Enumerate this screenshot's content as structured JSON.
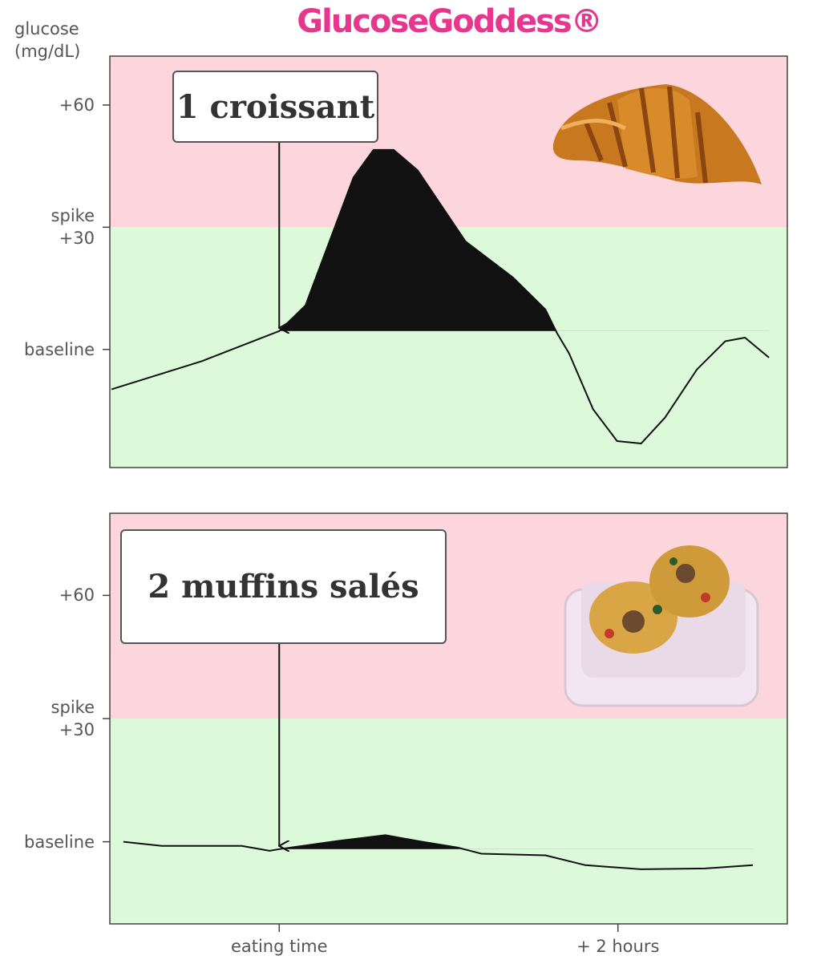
{
  "chart_data": [
    {
      "type": "line",
      "title": "GlucoseGoddess®",
      "ylabel": "glucose\n(mg/dL)",
      "annotation": "1 croissant",
      "x": [
        -59.4,
        -27.5,
        0,
        9.3,
        17.8,
        26.3,
        33.4,
        40.5,
        49,
        66,
        82.9,
        94.3,
        98.5,
        102.7,
        111.2,
        119.7,
        128.2,
        136.7,
        148,
        158,
        165,
        173.5
      ],
      "values": [
        -9.8,
        -2.9,
        4.5,
        10.8,
        26.5,
        42.2,
        49,
        49,
        44,
        26.5,
        17.6,
        9.8,
        3.9,
        -1,
        -14.7,
        -22.5,
        -23.1,
        -16.7,
        -4.9,
        2,
        2.9,
        -2
      ],
      "color": "#111111",
      "xlim": [
        -60,
        180
      ],
      "ylim": [
        -29,
        72
      ],
      "yticks": [
        {
          "value": 60,
          "label": "+60"
        },
        {
          "value": 30,
          "label": "spike\n+30"
        },
        {
          "value": 0,
          "label": "baseline"
        }
      ]
    },
    {
      "type": "line",
      "annotation": "2 muffins salés",
      "x": [
        -55.2,
        -41.6,
        -13.3,
        -3.4,
        0,
        20.7,
        37.6,
        49,
        63.1,
        71.6,
        94.3,
        108.5,
        128.2,
        150.9,
        167.8
      ],
      "values": [
        0,
        -1,
        -1,
        -2.2,
        -1.8,
        0.2,
        1.6,
        0.2,
        -1.4,
        -2.9,
        -3.3,
        -5.7,
        -6.7,
        -6.5,
        -5.7
      ],
      "color": "#111111",
      "xlim": [
        -60,
        180
      ],
      "ylim": [
        -20,
        80
      ],
      "yticks": [
        {
          "value": 60,
          "label": "+60"
        },
        {
          "value": 30,
          "label": "spike\n+30"
        },
        {
          "value": 0,
          "label": "baseline"
        }
      ],
      "xticks": [
        {
          "value": 0,
          "label": "eating time"
        },
        {
          "value": 120,
          "label": "+ 2 hours"
        }
      ]
    }
  ]
}
